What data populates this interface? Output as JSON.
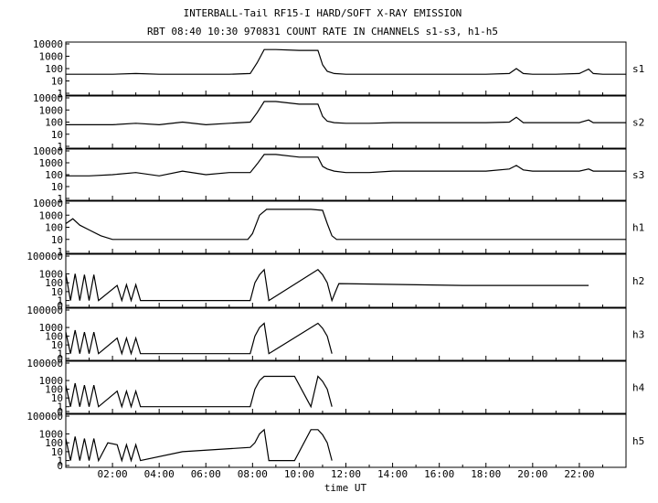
{
  "title_line1": "INTERBALL-Tail RF15-I HARD/SOFT X-RAY EMISSION",
  "title_line2": "RBT 08:40 10:30 970831  COUNT RATE IN CHANNELS s1-s3, h1-h5",
  "chart_data": {
    "type": "line",
    "xlabel": "time UT",
    "x_unit": "hours UT",
    "x_ticks": [
      "02:00",
      "04:00",
      "06:00",
      "08:00",
      "10:00",
      "12:00",
      "14:00",
      "16:00",
      "18:00",
      "20:00",
      "22:00"
    ],
    "xlim_hours": [
      0.0,
      24.0
    ],
    "y_scale": "log",
    "panels": [
      {
        "name": "s1",
        "y_ticks": [
          "10000",
          "1000",
          "100",
          "10",
          "1"
        ],
        "ylim": [
          1,
          10000
        ],
        "series": [
          {
            "x": [
              0,
              1,
              2,
              3,
              4,
              5,
              6,
              7,
              7.9,
              8.2,
              8.5,
              9,
              10,
              10.5,
              10.8,
              11,
              11.2,
              11.5,
              12,
              13,
              14,
              15,
              16,
              17,
              18,
              19,
              19.3,
              19.6,
              20,
              21,
              22,
              22.4,
              22.6,
              23,
              24
            ],
            "y": [
              35,
              35,
              35,
              40,
              35,
              35,
              35,
              35,
              40,
              300,
              3500,
              3500,
              3000,
              3000,
              3000,
              200,
              60,
              40,
              35,
              35,
              35,
              35,
              35,
              35,
              35,
              40,
              100,
              40,
              35,
              35,
              40,
              90,
              40,
              35,
              35
            ]
          }
        ]
      },
      {
        "name": "s2",
        "y_ticks": [
          "10000",
          "1000",
          "100",
          "10",
          "1"
        ],
        "ylim": [
          1,
          10000
        ],
        "series": [
          {
            "x": [
              0,
              1,
              2,
              3,
              4,
              5,
              6,
              7,
              7.9,
              8.2,
              8.5,
              9,
              10,
              10.5,
              10.8,
              11,
              11.2,
              11.5,
              12,
              13,
              14,
              15,
              16,
              17,
              18,
              19,
              19.3,
              19.6,
              20,
              21,
              22,
              22.4,
              22.6,
              23,
              24
            ],
            "y": [
              60,
              60,
              60,
              80,
              60,
              100,
              60,
              80,
              100,
              600,
              5000,
              5000,
              3000,
              3000,
              3000,
              300,
              120,
              90,
              80,
              80,
              90,
              90,
              90,
              90,
              90,
              100,
              250,
              90,
              90,
              90,
              90,
              150,
              90,
              90,
              90
            ]
          }
        ]
      },
      {
        "name": "s3",
        "y_ticks": [
          "10000",
          "1000",
          "100",
          "10",
          "1"
        ],
        "ylim": [
          1,
          10000
        ],
        "series": [
          {
            "x": [
              0,
              1,
              2,
              3,
              4,
              5,
              6,
              7,
              7.9,
              8.2,
              8.5,
              9,
              10,
              10.5,
              10.8,
              11,
              11.2,
              11.5,
              12,
              13,
              14,
              15,
              16,
              17,
              18,
              19,
              19.3,
              19.6,
              20,
              21,
              22,
              22.4,
              22.6,
              23,
              24
            ],
            "y": [
              80,
              80,
              100,
              150,
              80,
              200,
              100,
              150,
              150,
              800,
              5000,
              5000,
              3000,
              3000,
              3000,
              500,
              300,
              200,
              150,
              150,
              200,
              200,
              200,
              200,
              200,
              300,
              600,
              250,
              200,
              200,
              200,
              300,
              200,
              200,
              200
            ]
          }
        ]
      },
      {
        "name": "h1",
        "y_ticks": [
          "10000",
          "1000",
          "100",
          "10",
          "1"
        ],
        "ylim": [
          1,
          10000
        ],
        "series": [
          {
            "x": [
              0,
              0.3,
              0.6,
              1,
              1.5,
              2,
              3,
              4,
              5,
              6,
              7,
              7.8,
              8,
              8.3,
              8.6,
              9,
              10,
              10.5,
              11,
              11.2,
              11.4,
              11.6,
              12,
              14,
              16,
              18,
              20,
              22,
              23,
              24
            ],
            "y": [
              200,
              500,
              150,
              60,
              20,
              10,
              10,
              10,
              10,
              10,
              10,
              10,
              30,
              1000,
              3000,
              3000,
              3000,
              3000,
              2500,
              200,
              20,
              10,
              10,
              10,
              10,
              10,
              10,
              10,
              10,
              10
            ]
          }
        ]
      },
      {
        "name": "h2",
        "y_ticks": [
          "100000",
          "1000",
          "100",
          "10",
          "1",
          "0"
        ],
        "ylim": [
          0,
          100000
        ],
        "series": [
          {
            "x": [
              0,
              0.2,
              0.4,
              0.6,
              0.8,
              1,
              1.2,
              1.4,
              2.2,
              2.4,
              2.6,
              2.8,
              3,
              3.2,
              7.9,
              8.1,
              8.3,
              8.5,
              8.7,
              10.8,
              11,
              11.2,
              11.4,
              11.6,
              11.7,
              17,
              22.4
            ],
            "y": [
              1000,
              1,
              1000,
              1,
              800,
              1,
              800,
              1,
              50,
              1,
              60,
              1,
              60,
              1,
              1,
              100,
              800,
              3000,
              1,
              3000,
              800,
              100,
              1,
              20,
              80,
              50,
              50
            ]
          }
        ]
      },
      {
        "name": "h3",
        "y_ticks": [
          "100000",
          "1000",
          "100",
          "10",
          "1",
          "0"
        ],
        "ylim": [
          0,
          100000
        ],
        "series": [
          {
            "x": [
              0,
              0.2,
              0.4,
              0.6,
              0.8,
              1,
              1.2,
              1.4,
              2.2,
              2.4,
              2.6,
              2.8,
              3,
              3.2,
              7.9,
              8.1,
              8.3,
              8.5,
              8.7,
              10.8,
              11,
              11.2,
              11.4
            ],
            "y": [
              300,
              1,
              500,
              1,
              300,
              1,
              300,
              1,
              60,
              1,
              60,
              1,
              60,
              1,
              1,
              100,
              1000,
              3000,
              1,
              3000,
              800,
              100,
              1
            ]
          }
        ]
      },
      {
        "name": "h4",
        "y_ticks": [
          "100000",
          "1000",
          "100",
          "10",
          "1",
          "0"
        ],
        "ylim": [
          0,
          100000
        ],
        "series": [
          {
            "x": [
              0,
              0.2,
              0.4,
              0.6,
              0.8,
              1,
              1.2,
              1.4,
              2.2,
              2.4,
              2.6,
              2.8,
              3,
              3.2,
              7.9,
              8.1,
              8.3,
              8.5,
              8.7,
              9.8,
              10.5,
              10.8,
              11,
              11.2,
              11.4
            ],
            "y": [
              300,
              1,
              500,
              1,
              300,
              1,
              300,
              1,
              60,
              1,
              60,
              1,
              60,
              1,
              1,
              100,
              1000,
              3000,
              3000,
              3000,
              1,
              3000,
              800,
              100,
              1
            ]
          }
        ]
      },
      {
        "name": "h5",
        "y_ticks": [
          "100000",
          "1000",
          "100",
          "10",
          "1",
          "0"
        ],
        "ylim": [
          0,
          100000
        ],
        "series": [
          {
            "x": [
              0,
              0.2,
              0.4,
              0.6,
              0.8,
              1,
              1.2,
              1.4,
              1.8,
              2.2,
              2.4,
              2.6,
              2.8,
              3,
              3.2,
              5,
              7.9,
              8.1,
              8.3,
              8.5,
              8.7,
              9.8,
              10.5,
              10.8,
              11,
              11.2,
              11.4
            ],
            "y": [
              300,
              1,
              500,
              1,
              300,
              1,
              300,
              1,
              100,
              60,
              1,
              60,
              1,
              60,
              1,
              10,
              30,
              100,
              1000,
              3000,
              1,
              1,
              3000,
              3000,
              800,
              100,
              1
            ]
          }
        ]
      }
    ]
  }
}
